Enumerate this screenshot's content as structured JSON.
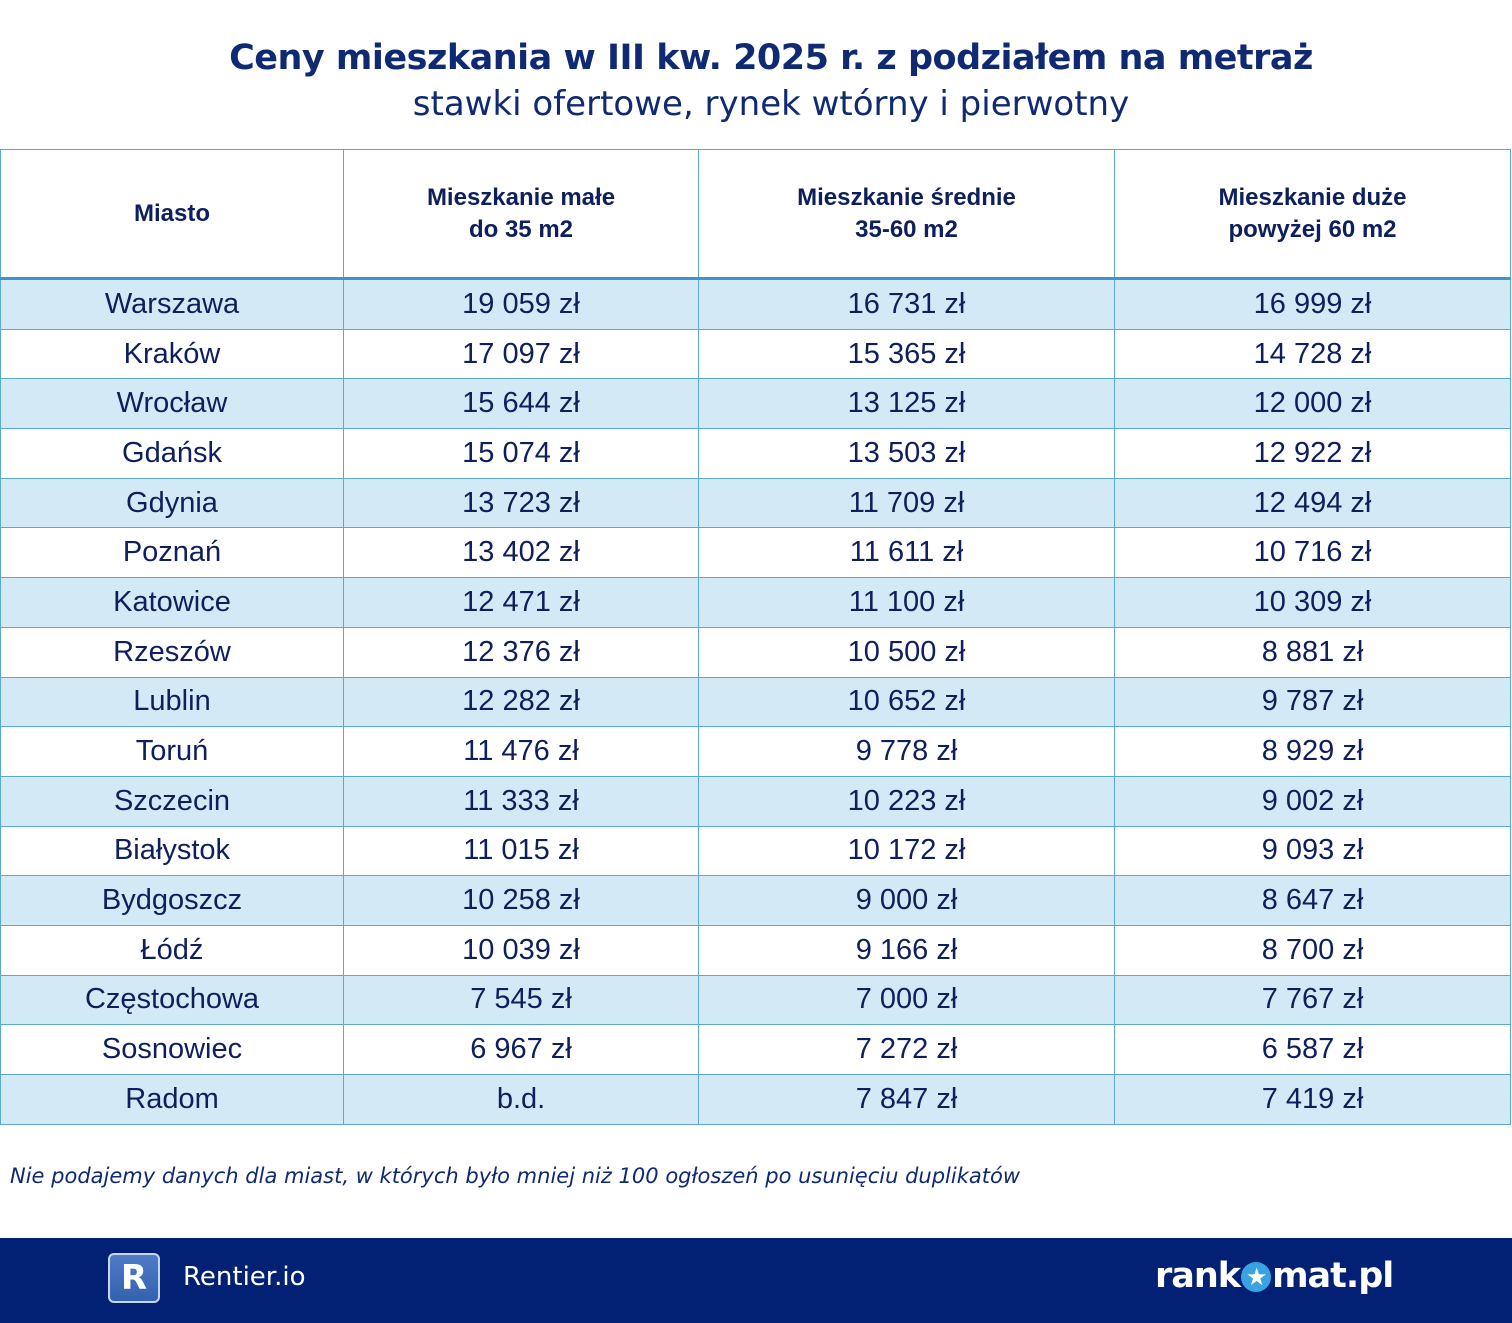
{
  "title": "Ceny mieszkania w III kw. 2025 r. z podziałem na metraż",
  "subtitle": "stawki ofertowe, rynek wtórny i pierwotny",
  "columns": [
    {
      "line1": "Miasto",
      "line2": ""
    },
    {
      "line1": "Mieszkanie małe",
      "line2": "do 35 m2"
    },
    {
      "line1": "Mieszkanie średnie",
      "line2": "35-60 m2"
    },
    {
      "line1": "Mieszkanie duże",
      "line2": "powyżej 60 m2"
    }
  ],
  "rows": [
    [
      "Warszawa",
      "19 059 zł",
      "16 731 zł",
      "16 999 zł"
    ],
    [
      "Kraków",
      "17 097 zł",
      "15 365 zł",
      "14 728 zł"
    ],
    [
      "Wrocław",
      "15 644 zł",
      "13 125 zł",
      "12 000 zł"
    ],
    [
      "Gdańsk",
      "15 074 zł",
      "13 503 zł",
      "12 922 zł"
    ],
    [
      "Gdynia",
      "13 723 zł",
      "11 709 zł",
      "12 494 zł"
    ],
    [
      "Poznań",
      "13 402 zł",
      "11 611 zł",
      "10 716 zł"
    ],
    [
      "Katowice",
      "12 471 zł",
      "11 100 zł",
      "10 309 zł"
    ],
    [
      "Rzeszów",
      "12 376 zł",
      "10 500 zł",
      "8 881 zł"
    ],
    [
      "Lublin",
      "12 282 zł",
      "10 652 zł",
      "9 787 zł"
    ],
    [
      "Toruń",
      "11 476 zł",
      "9 778 zł",
      "8 929 zł"
    ],
    [
      "Szczecin",
      "11 333 zł",
      "10 223 zł",
      "9 002 zł"
    ],
    [
      "Białystok",
      "11 015 zł",
      "10 172 zł",
      "9 093 zł"
    ],
    [
      "Bydgoszcz",
      "10 258 zł",
      "9 000 zł",
      "8 647 zł"
    ],
    [
      "Łódź",
      "10 039 zł",
      "9 166 zł",
      "8 700 zł"
    ],
    [
      "Częstochowa",
      "7 545 zł",
      "7 000 zł",
      "7 767 zł"
    ],
    [
      "Sosnowiec",
      "6 967 zł",
      "7 272 zł",
      "6 587 zł"
    ],
    [
      "Radom",
      "b.d.",
      "7 847 zł",
      "7 419 zł"
    ]
  ],
  "note": "Nie podajemy danych dla miast, w których było mniej niż 100 ogłoszeń po usunięciu duplikatów",
  "footer": {
    "rentier_letter": "R",
    "rentier_name": "Rentier.io",
    "rankomat_a": "rank",
    "rankomat_b": "mat.pl",
    "rankomat_star": "★"
  },
  "colors": {
    "navy": "#032174",
    "row_alt": "#d3eaf6",
    "border": "#5aa9d3"
  }
}
